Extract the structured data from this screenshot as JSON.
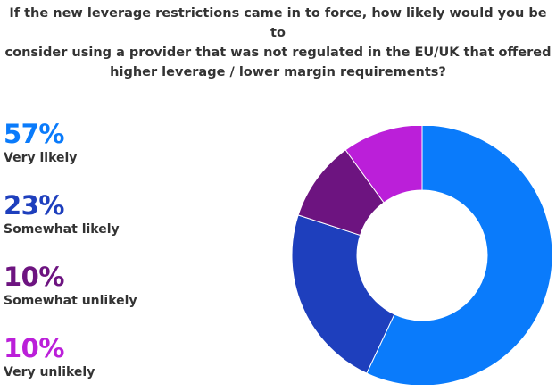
{
  "chart_data": {
    "type": "pie",
    "variant": "donut",
    "title": "If the new leverage restrictions came in to force, how likely would you be to\nconsider using a provider that was not regulated in the EU/UK that offered\nhigher leverage / lower margin requirements?",
    "categories": [
      "Very likely",
      "Somewhat likely",
      "Somewhat unlikely",
      "Very unlikely"
    ],
    "values": [
      57,
      23,
      10,
      10
    ],
    "value_labels": [
      "57%",
      "23%",
      "10%",
      "10%"
    ],
    "colors": [
      "#0a7bfb",
      "#1e3fbd",
      "#6d1480",
      "#bb1fd9"
    ],
    "legend_position": "left"
  }
}
